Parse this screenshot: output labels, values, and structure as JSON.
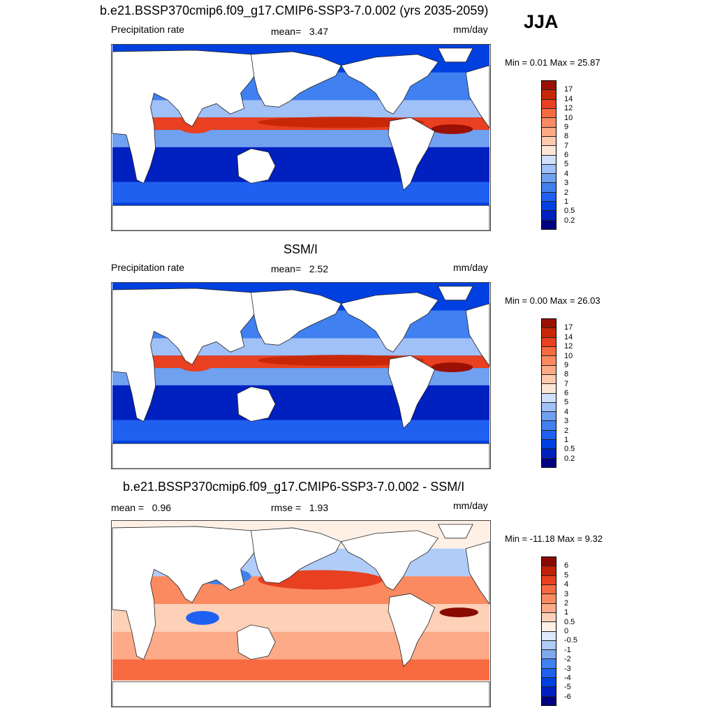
{
  "season": "JJA",
  "colors": {
    "precip": [
      "#000080",
      "#0020c0",
      "#0040e0",
      "#2060f0",
      "#4080f0",
      "#70a0f0",
      "#a0c0f8",
      "#d0e0fc",
      "#fde6d6",
      "#fdcab0",
      "#fcaa85",
      "#fb8a60",
      "#f86a40",
      "#e84020",
      "#c82808",
      "#9a1005"
    ],
    "diff": [
      "#000080",
      "#0020c0",
      "#0040e0",
      "#2060f0",
      "#4080f0",
      "#80a8f0",
      "#b0ccf8",
      "#dde8fc",
      "#fff0e6",
      "#fdd0b8",
      "#fcaa88",
      "#fb8a60",
      "#f86a40",
      "#e84020",
      "#c02005",
      "#8a0a02"
    ]
  },
  "panels": [
    {
      "title": "b.e21.BSSP370cmip6.f09_g17.CMIP6-SSP3-7.0.002 (yrs 2035-2059)",
      "left_label": "Precipitation rate",
      "center_label": "mean=",
      "center_value": "3.47",
      "units": "mm/day",
      "minmax_label": "Min =   0.01 Max =  25.87",
      "palette": "precip",
      "ticks": [
        "17",
        "14",
        "12",
        "10",
        "9",
        "8",
        "7",
        "6",
        "5",
        "4",
        "3",
        "2",
        "1",
        "0.5",
        "0.2"
      ]
    },
    {
      "title": "SSM/I",
      "left_label": "Precipitation rate",
      "center_label": "mean=",
      "center_value": "2.52",
      "units": "mm/day",
      "minmax_label": "Min =   0.00 Max =  26.03",
      "palette": "precip",
      "ticks": [
        "17",
        "14",
        "12",
        "10",
        "9",
        "8",
        "7",
        "6",
        "5",
        "4",
        "3",
        "2",
        "1",
        "0.5",
        "0.2"
      ]
    },
    {
      "title": "b.e21.BSSP370cmip6.f09_g17.CMIP6-SSP3-7.0.002 - SSM/I",
      "left_label": "mean =",
      "left_value": "0.96",
      "center_label": "rmse =",
      "center_value": "1.93",
      "units": "mm/day",
      "minmax_label": "Min = -11.18 Max =   9.32",
      "palette": "diff",
      "ticks": [
        "6",
        "5",
        "4",
        "3",
        "2",
        "1",
        "0.5",
        "0",
        "-0.5",
        "-1",
        "-2",
        "-3",
        "-4",
        "-5",
        "-6"
      ]
    }
  ]
}
